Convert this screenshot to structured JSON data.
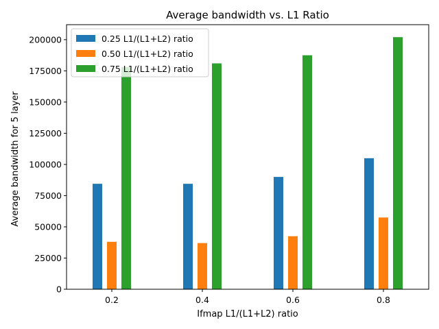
{
  "chart_data": {
    "type": "bar",
    "title": "Average bandwidth vs. L1 Ratio",
    "xlabel": "Ifmap L1/(L1+L2) ratio",
    "ylabel": "Average bandwidth for 5 layer",
    "categories": [
      "0.2",
      "0.4",
      "0.6",
      "0.8"
    ],
    "series": [
      {
        "name": "0.25 L1/(L1+L2) ratio",
        "color": "#1f77b4",
        "values": [
          84500,
          84500,
          90000,
          105000
        ]
      },
      {
        "name": "0.50 L1/(L1+L2) ratio",
        "color": "#ff7f0e",
        "values": [
          38000,
          37000,
          42500,
          57500
        ]
      },
      {
        "name": "0.75 L1/(L1+L2) ratio",
        "color": "#2ca02c",
        "values": [
          178000,
          181000,
          187500,
          202000
        ]
      }
    ],
    "ylim": [
      0,
      212000
    ],
    "yticks": [
      0,
      25000,
      50000,
      75000,
      100000,
      125000,
      150000,
      175000,
      200000
    ],
    "ytick_labels": [
      "0",
      "25000",
      "50000",
      "75000",
      "100000",
      "125000",
      "150000",
      "175000",
      "200000"
    ],
    "grid": false,
    "legend_position": "top-left"
  }
}
